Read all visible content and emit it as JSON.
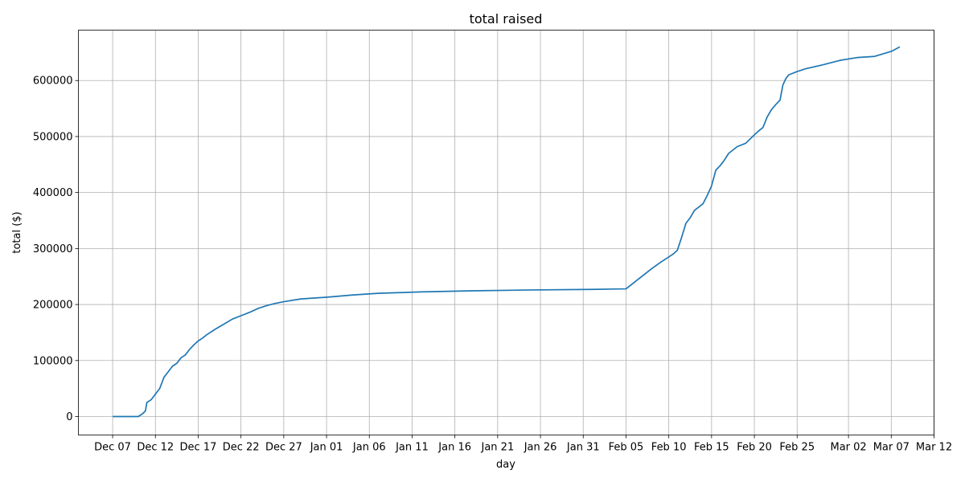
{
  "chart_data": {
    "type": "line",
    "title": "total raised",
    "xlabel": "day",
    "ylabel": "total ($)",
    "grid": true,
    "xlim": [
      "2023-12-03",
      "2024-03-12"
    ],
    "ylim": [
      -33000,
      690000
    ],
    "x_ticks": [
      "2023-12-07",
      "2023-12-12",
      "2023-12-17",
      "2023-12-22",
      "2023-12-27",
      "2024-01-01",
      "2024-01-06",
      "2024-01-11",
      "2024-01-16",
      "2024-01-21",
      "2024-01-26",
      "2024-01-31",
      "2024-02-05",
      "2024-02-10",
      "2024-02-15",
      "2024-02-20",
      "2024-02-25",
      "2024-03-02",
      "2024-03-07",
      "2024-03-12"
    ],
    "x_tick_labels": [
      "Dec 07",
      "Dec 12",
      "Dec 17",
      "Dec 22",
      "Dec 27",
      "Jan 01",
      "Jan 06",
      "Jan 11",
      "Jan 16",
      "Jan 21",
      "Jan 26",
      "Jan 31",
      "Feb 05",
      "Feb 10",
      "Feb 15",
      "Feb 20",
      "Feb 25",
      "Mar 02",
      "Mar 07",
      "Mar 12"
    ],
    "y_ticks": [
      0,
      100000,
      200000,
      300000,
      400000,
      500000,
      600000
    ],
    "y_tick_labels": [
      "0",
      "100000",
      "200000",
      "300000",
      "400000",
      "500000",
      "600000"
    ],
    "series": [
      {
        "color": "#1f77b4",
        "x": [
          "2023-12-07",
          "2023-12-10",
          "2023-12-10T12:00",
          "2023-12-10T20:00",
          "2023-12-11",
          "2023-12-11T12:00",
          "2023-12-12",
          "2023-12-12T12:00",
          "2023-12-13",
          "2023-12-13T12:00",
          "2023-12-14",
          "2023-12-14T12:00",
          "2023-12-15",
          "2023-12-15T12:00",
          "2023-12-16",
          "2023-12-16T12:00",
          "2023-12-17",
          "2023-12-17T12:00",
          "2023-12-18",
          "2023-12-19",
          "2023-12-20",
          "2023-12-21",
          "2023-12-22",
          "2023-12-23",
          "2023-12-24",
          "2023-12-25",
          "2023-12-26",
          "2023-12-27",
          "2023-12-29",
          "2024-01-01",
          "2024-01-04",
          "2024-01-07",
          "2024-01-12",
          "2024-01-18",
          "2024-01-25",
          "2024-02-01",
          "2024-02-05",
          "2024-02-06",
          "2024-02-07",
          "2024-02-08",
          "2024-02-09",
          "2024-02-10",
          "2024-02-10T12:00",
          "2024-02-11",
          "2024-02-11T12:00",
          "2024-02-12",
          "2024-02-12T12:00",
          "2024-02-13",
          "2024-02-14",
          "2024-02-14T12:00",
          "2024-02-15",
          "2024-02-15T12:00",
          "2024-02-16",
          "2024-02-16T12:00",
          "2024-02-17",
          "2024-02-18",
          "2024-02-19",
          "2024-02-20",
          "2024-02-20T12:00",
          "2024-02-21",
          "2024-02-21T12:00",
          "2024-02-22",
          "2024-02-22T12:00",
          "2024-02-23",
          "2024-02-23T08:00",
          "2024-02-23T16:00",
          "2024-02-24",
          "2024-02-25",
          "2024-02-26",
          "2024-02-28",
          "2024-03-01",
          "2024-03-03",
          "2024-03-05",
          "2024-03-07",
          "2024-03-08"
        ],
        "y": [
          0,
          0,
          5000,
          10000,
          25000,
          30000,
          40000,
          50000,
          70000,
          80000,
          90000,
          95000,
          105000,
          110000,
          120000,
          128000,
          135000,
          140000,
          146000,
          156000,
          165000,
          174000,
          180000,
          186000,
          193000,
          198000,
          202000,
          205000,
          210000,
          213000,
          217000,
          220000,
          222500,
          224500,
          226000,
          227000,
          228000,
          240000,
          252000,
          264000,
          275000,
          285000,
          290000,
          297000,
          320000,
          345000,
          355000,
          368000,
          380000,
          395000,
          412000,
          440000,
          448000,
          458000,
          470000,
          482000,
          488000,
          503000,
          510000,
          516000,
          535000,
          548000,
          557000,
          565000,
          592000,
          603000,
          610000,
          616000,
          621000,
          628000,
          636000,
          641000,
          643000,
          652000,
          660000
        ]
      }
    ]
  }
}
